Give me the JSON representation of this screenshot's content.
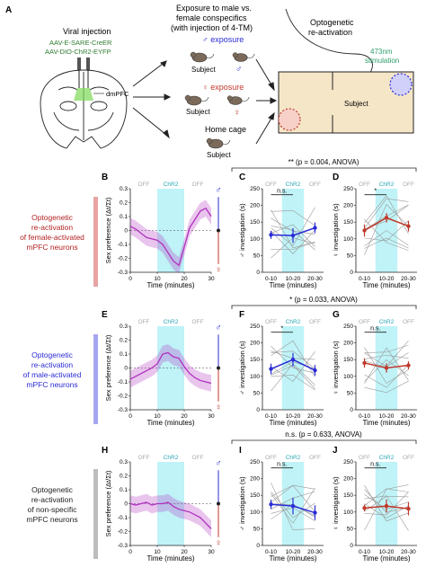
{
  "panel_letters": {
    "A": "A",
    "B": "B",
    "C": "C",
    "D": "D",
    "E": "E",
    "F": "F",
    "G": "G",
    "H": "H",
    "I": "I",
    "J": "J"
  },
  "panel_a": {
    "viral_title": "Viral injection",
    "virus1": "AAV-E-SARE-CreER",
    "virus2": "AAV-DIO-ChR2-EYFP",
    "dmpfc": "dmPFC",
    "exposure_title1": "Exposure to male vs.",
    "exposure_title2": "female conspecifics",
    "exposure_title3": "(with injection of 4-TM)",
    "male_exposure": "♂ exposure",
    "female_exposure": "♀ exposure",
    "home_cage": "Home cage",
    "subject": "Subject",
    "male_symbol": "♂",
    "female_symbol": "♀",
    "opto_title1": "Optogenetic",
    "opto_title2": "re-activation",
    "stim1": "473nm",
    "stim2": "stimulation"
  },
  "row_labels": [
    {
      "l1": "Optogenetic",
      "l2": "re-activation",
      "l3": "of female-activated",
      "l4": "mPFC neurons",
      "color": "#b22222"
    },
    {
      "l1": "Optogenetic",
      "l2": "re-activation",
      "l3": "of male-activated",
      "l4": "mPFC neurons",
      "color": "#2b2bd6"
    },
    {
      "l1": "Optogenetic",
      "l2": "re-activation",
      "l3": "of non-specific",
      "l4": "mPFC neurons",
      "color": "#222222"
    }
  ],
  "anova": [
    "** (p = 0.004, ANOVA)",
    "* (p = 0.033, ANOVA)",
    "n.s. (p = 0.633, ANOVA)"
  ],
  "labels": {
    "off": "OFF",
    "chr2": "ChR2",
    "time_minutes": "Time (minutes)",
    "sex_pref": "Sex preference (Δt/Σt)",
    "male_inv": "♂ investigation (s)",
    "female_inv": "♀ investigation (s)",
    "ns": "n.s.",
    "star": "*",
    "cat": [
      "0-10",
      "10-20",
      "20-30"
    ]
  },
  "colors": {
    "male": "#2b2bd6",
    "female": "#c0392b",
    "trace": "#b030c0",
    "chr2": "#bff3f7",
    "grey_bar": "#bdbdbd",
    "pink_bar": "#e8a3a3",
    "blue_bar": "#a6a6f0"
  },
  "chart_data": [
    {
      "type": "line",
      "panel": "B",
      "x_ticks": [
        0,
        10,
        20,
        30
      ],
      "y_ticks": [
        -0.3,
        -0.2,
        -0.1,
        0,
        0.1,
        0.2,
        0.3
      ],
      "ylim": [
        -0.3,
        0.3
      ],
      "xlim": [
        0,
        30
      ],
      "x": [
        0,
        2,
        4,
        6,
        8,
        10,
        12,
        14,
        16,
        18,
        20,
        22,
        24,
        26,
        28,
        30
      ],
      "y": [
        0.03,
        0.01,
        -0.02,
        -0.05,
        -0.06,
        -0.07,
        -0.1,
        -0.16,
        -0.22,
        -0.25,
        -0.12,
        0.02,
        0.08,
        0.14,
        0.16,
        0.1
      ]
    },
    {
      "type": "line",
      "panel": "E",
      "x_ticks": [
        0,
        10,
        20,
        30
      ],
      "y_ticks": [
        -0.3,
        -0.2,
        -0.1,
        0,
        0.1,
        0.2,
        0.3
      ],
      "ylim": [
        -0.3,
        0.3
      ],
      "xlim": [
        0,
        30
      ],
      "x": [
        0,
        2,
        4,
        6,
        8,
        10,
        12,
        14,
        16,
        18,
        20,
        22,
        24,
        26,
        28,
        30
      ],
      "y": [
        -0.08,
        -0.06,
        -0.04,
        -0.02,
        0.0,
        0.03,
        0.1,
        0.11,
        0.08,
        0.07,
        0.01,
        -0.04,
        -0.07,
        -0.09,
        -0.1,
        -0.11
      ]
    },
    {
      "type": "line",
      "panel": "H",
      "x_ticks": [
        0,
        10,
        20,
        30
      ],
      "y_ticks": [
        -0.3,
        -0.2,
        -0.1,
        0,
        0.1,
        0.2,
        0.3
      ],
      "ylim": [
        -0.3,
        0.3
      ],
      "xlim": [
        0,
        30
      ],
      "x": [
        0,
        2,
        4,
        6,
        8,
        10,
        12,
        14,
        16,
        18,
        20,
        22,
        24,
        26,
        28,
        30
      ],
      "y": [
        0.0,
        -0.01,
        0.0,
        0.01,
        -0.01,
        0.0,
        0.0,
        0.01,
        -0.02,
        -0.04,
        -0.05,
        -0.06,
        -0.08,
        -0.1,
        -0.14,
        -0.18
      ]
    },
    {
      "type": "line",
      "panel": "C",
      "categories": [
        "0-10",
        "10-20",
        "20-30"
      ],
      "y_ticks": [
        0,
        50,
        100,
        150,
        200,
        250
      ],
      "ylim": [
        0,
        250
      ],
      "values": [
        112,
        110,
        133
      ],
      "errors": [
        12,
        22,
        16
      ]
    },
    {
      "type": "line",
      "panel": "D",
      "categories": [
        "0-10",
        "10-20",
        "20-30"
      ],
      "y_ticks": [
        0,
        50,
        100,
        150,
        200,
        250
      ],
      "ylim": [
        0,
        250
      ],
      "values": [
        125,
        163,
        138
      ],
      "errors": [
        18,
        14,
        16
      ]
    },
    {
      "type": "line",
      "panel": "F",
      "categories": [
        "0-10",
        "10-20",
        "20-30"
      ],
      "y_ticks": [
        0,
        50,
        100,
        150,
        200,
        250
      ],
      "ylim": [
        0,
        250
      ],
      "values": [
        122,
        150,
        118
      ],
      "errors": [
        16,
        20,
        16
      ]
    },
    {
      "type": "line",
      "panel": "G",
      "categories": [
        "0-10",
        "10-20",
        "20-30"
      ],
      "y_ticks": [
        0,
        50,
        100,
        150,
        200,
        250
      ],
      "ylim": [
        0,
        250
      ],
      "values": [
        140,
        125,
        133
      ],
      "errors": [
        14,
        14,
        12
      ]
    },
    {
      "type": "line",
      "panel": "I",
      "categories": [
        "0-10",
        "10-20",
        "20-30"
      ],
      "y_ticks": [
        0,
        50,
        100,
        150,
        200,
        250
      ],
      "ylim": [
        0,
        250
      ],
      "values": [
        123,
        118,
        98
      ],
      "errors": [
        14,
        25,
        22
      ]
    },
    {
      "type": "line",
      "panel": "J",
      "categories": [
        "0-10",
        "10-20",
        "20-30"
      ],
      "y_ticks": [
        0,
        50,
        100,
        150,
        200,
        250
      ],
      "ylim": [
        0,
        250
      ],
      "values": [
        112,
        118,
        110
      ],
      "errors": [
        10,
        20,
        20
      ]
    }
  ]
}
